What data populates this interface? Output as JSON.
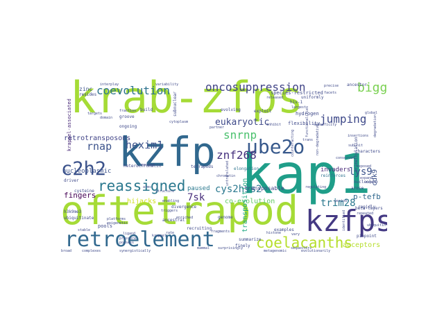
{
  "words": [
    {
      "text": "krab-zfps",
      "color": "#a5db36"
    },
    {
      "text": "oftetrapod",
      "color": "#a5db36"
    },
    {
      "text": "kap1",
      "color": "#1f9e89"
    },
    {
      "text": "kzfp",
      "color": "#31688e"
    },
    {
      "text": "kzfps",
      "color": "#443983"
    },
    {
      "text": "retroelement",
      "color": "#31688e"
    },
    {
      "text": "ube2o",
      "color": "#38598c"
    },
    {
      "text": "c2h2",
      "color": "#3b528b"
    },
    {
      "text": "coelacanths",
      "color": "#b5de2b"
    },
    {
      "text": "reassigned",
      "color": "#2a788e"
    },
    {
      "text": "oncosuppression",
      "color": "#414487"
    },
    {
      "text": "coevolution",
      "color": "#2c728e"
    },
    {
      "text": "biggest",
      "color": "#7ad151"
    },
    {
      "text": "jumping",
      "color": "#3e4989"
    },
    {
      "text": "znf268",
      "color": "#46327e"
    },
    {
      "text": "snrnp",
      "color": "#4ac16d"
    },
    {
      "text": "hexim1",
      "color": "#3b528b"
    },
    {
      "text": "rnap",
      "color": "#3b528b"
    },
    {
      "text": "eukaryotic",
      "color": "#3e4989"
    },
    {
      "text": "cys2his2",
      "color": "#2a788e"
    },
    {
      "text": "trim28",
      "color": "#2a788e"
    },
    {
      "text": "lys9",
      "color": "#3b528b"
    },
    {
      "text": "7sk",
      "color": "#472d7b"
    },
    {
      "text": "p-tefb",
      "color": "#31688e"
    },
    {
      "text": "retrotransposons",
      "color": "#404387"
    },
    {
      "text": "fingers",
      "color": "#440154"
    },
    {
      "text": "hijacks",
      "color": "#cde11d"
    },
    {
      "text": "co-evolution",
      "color": "#5ec962"
    },
    {
      "text": "acceptors",
      "color": "#b5de2b"
    },
    {
      "text": "nucleoplasmic",
      "color": "#3b528b"
    },
    {
      "text": "paused",
      "color": "#2a788e"
    },
    {
      "text": "transposition",
      "color": "#22a884"
    },
    {
      "text": "transposable",
      "color": "#414487"
    },
    {
      "text": "invaders",
      "color": "#482878"
    },
    {
      "text": "cdk9",
      "color": "#3b528b"
    },
    {
      "text": "krappel-associated",
      "color": "#482878"
    },
    {
      "text": "zinc",
      "color": "#3b528b"
    },
    {
      "text": "flexibility",
      "color": "#3e4989"
    },
    {
      "text": "hydrogen",
      "color": "#3e4989"
    },
    {
      "text": "species-restricted",
      "color": "#3e4989"
    },
    {
      "text": "pools",
      "color": "#3e4989"
    },
    {
      "text": "tetrapods",
      "color": "#3e4989"
    },
    {
      "text": "elongation",
      "color": "#2c728e"
    },
    {
      "text": "heterochromatin",
      "color": "#3e4989"
    },
    {
      "text": "characters",
      "color": "#3e4989"
    },
    {
      "text": "reinforces",
      "color": "#2c728e"
    },
    {
      "text": "beta-layers",
      "color": "#3e4989"
    },
    {
      "text": "driver",
      "color": "#3e4989"
    },
    {
      "text": "arose",
      "color": "#3e4989"
    },
    {
      "text": "rapidly",
      "color": "#3e4989"
    },
    {
      "text": "nucleolus",
      "color": "#3e4989"
    },
    {
      "text": "recruiting",
      "color": "#3e4989"
    },
    {
      "text": "ancestral",
      "color": "#3e4989"
    },
    {
      "text": "divergence",
      "color": "#3e4989"
    },
    {
      "text": "finely",
      "color": "#3e4989"
    },
    {
      "text": "examples",
      "color": "#3e4989"
    },
    {
      "text": "uniformly",
      "color": "#3e4989"
    },
    {
      "text": "genome",
      "color": "#3e4989"
    },
    {
      "text": "summarize",
      "color": "#3e4989"
    },
    {
      "text": "exploit",
      "color": "#3e4989"
    },
    {
      "text": "evolving",
      "color": "#3e4989"
    },
    {
      "text": "ancestor",
      "color": "#3e4989"
    },
    {
      "text": "hiv-1",
      "color": "#3e4989"
    },
    {
      "text": "build",
      "color": "#3e4989"
    },
    {
      "text": "groove",
      "color": "#3e4989"
    },
    {
      "text": "ongoing",
      "color": "#3e4989"
    },
    {
      "text": "trimethylation",
      "color": "#3e4989"
    },
    {
      "text": "cysteine",
      "color": "#3e4989"
    },
    {
      "text": "h3k9me3",
      "color": "#3e4989"
    },
    {
      "text": "ubiquitinate",
      "color": "#3e4989"
    },
    {
      "text": "subnuclear",
      "color": "#3e4989"
    },
    {
      "text": "pinpoint",
      "color": "#3e4989"
    },
    {
      "text": "resides",
      "color": "#3e4989"
    },
    {
      "text": "structure",
      "color": "#3e4989"
    },
    {
      "text": "platforms",
      "color": "#3e4989"
    },
    {
      "text": "epigenetic",
      "color": "#3e4989"
    },
    {
      "text": "sequesters",
      "color": "#3e4989"
    },
    {
      "text": "largest",
      "color": "#3e4989"
    },
    {
      "text": "trans",
      "color": "#3e4989"
    },
    {
      "text": "facets",
      "color": "#3e4989"
    },
    {
      "text": "precise",
      "color": "#3e4989"
    },
    {
      "text": "variability",
      "color": "#3e4989"
    },
    {
      "text": "interplay",
      "color": "#3e4989"
    },
    {
      "text": "targets",
      "color": "#3e4989"
    },
    {
      "text": "fraction",
      "color": "#3e4989"
    },
    {
      "text": "global",
      "color": "#3e4989"
    },
    {
      "text": "cytoplasm",
      "color": "#3e4989"
    },
    {
      "text": "broad",
      "color": "#3e4989"
    },
    {
      "text": "complexes",
      "color": "#3e4989"
    },
    {
      "text": "synergistically",
      "color": "#3e4989"
    },
    {
      "text": "evolutionarily",
      "color": "#3e4989"
    },
    {
      "text": "metagenomic",
      "color": "#3e4989"
    },
    {
      "text": "stable",
      "color": "#3e4989"
    },
    {
      "text": "pressure",
      "color": "#3e4989"
    },
    {
      "text": "possess",
      "color": "#3e4989"
    },
    {
      "text": "ligand",
      "color": "#3e4989"
    },
    {
      "text": "rate",
      "color": "#3e4989"
    },
    {
      "text": "fragments",
      "color": "#3e4989"
    },
    {
      "text": "period",
      "color": "#3e4989"
    },
    {
      "text": "expand",
      "color": "#3e4989"
    },
    {
      "text": "report",
      "color": "#3e4989"
    },
    {
      "text": "repeated",
      "color": "#3e4989"
    },
    {
      "text": "arms",
      "color": "#3e4989"
    },
    {
      "text": "triggers",
      "color": "#3e4989"
    },
    {
      "text": "chromatin",
      "color": "#3e4989"
    },
    {
      "text": "partner",
      "color": "#3e4989"
    },
    {
      "text": "enriched",
      "color": "#3e4989"
    },
    {
      "text": "counteracting",
      "color": "#3e4989"
    },
    {
      "text": "functionalities",
      "color": "#3e4989"
    },
    {
      "text": "non-degradative",
      "color": "#3e4989"
    },
    {
      "text": "degradation",
      "color": "#3e4989"
    },
    {
      "text": "untranslated",
      "color": "#3e4989"
    },
    {
      "text": "surprisingly",
      "color": "#3e4989"
    },
    {
      "text": "vary",
      "color": "#3e4989"
    },
    {
      "text": "histone",
      "color": "#3e4989"
    },
    {
      "text": "released",
      "color": "#3e4989"
    },
    {
      "text": "specificity",
      "color": "#3e4989"
    },
    {
      "text": "inhibit",
      "color": "#3e4989"
    },
    {
      "text": "insertions",
      "color": "#3e4989"
    },
    {
      "text": "identified",
      "color": "#3e4989"
    },
    {
      "text": "conserved",
      "color": "#3e4989"
    },
    {
      "text": "subunit",
      "color": "#3e4989"
    },
    {
      "text": "ubiquitin",
      "color": "#3e4989"
    },
    {
      "text": "domain",
      "color": "#3e4989"
    },
    {
      "text": "kruppel",
      "color": "#3e4989"
    },
    {
      "text": "regulating",
      "color": "#3e4989"
    },
    {
      "text": "enabling",
      "color": "#3e4989"
    },
    {
      "text": "nested",
      "color": "#3e4989"
    },
    {
      "text": "mammal",
      "color": "#3e4989"
    },
    {
      "text": "exposed",
      "color": "#3e4989"
    }
  ]
}
